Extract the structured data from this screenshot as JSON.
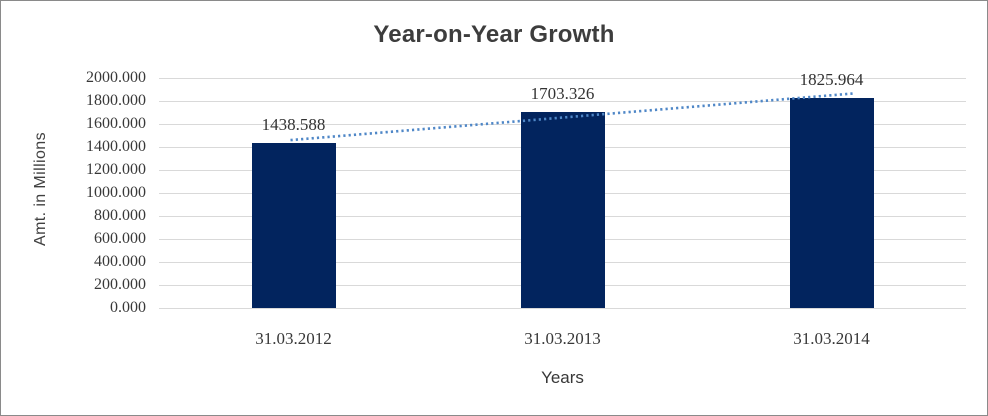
{
  "chart_data": {
    "type": "bar",
    "title": "Year-on-Year Growth",
    "xlabel": "Years",
    "ylabel": "Amt. in Millions",
    "categories": [
      "31.03.2012",
      "31.03.2013",
      "31.03.2014"
    ],
    "values": [
      1438.588,
      1703.326,
      1825.964
    ],
    "data_labels": [
      "1438.588",
      "1703.326",
      "1825.964"
    ],
    "y_ticks": [
      "2000.000",
      "1800.000",
      "1600.000",
      "1400.000",
      "1200.000",
      "1000.000",
      "800.000",
      "600.000",
      "400.000",
      "200.000",
      "0.000"
    ],
    "ylim": [
      0,
      2000
    ],
    "y_tick_step": 200,
    "grid": "horizontal-on",
    "legend": "none",
    "trendline": {
      "type": "linear",
      "style": "dotted"
    },
    "colors": {
      "bar": "#02245e",
      "trendline": "#4f87c7",
      "gridline": "#d9d9d9",
      "text": "#3f3f3f",
      "border": "#8a8a8a",
      "background": "#ffffff"
    }
  }
}
